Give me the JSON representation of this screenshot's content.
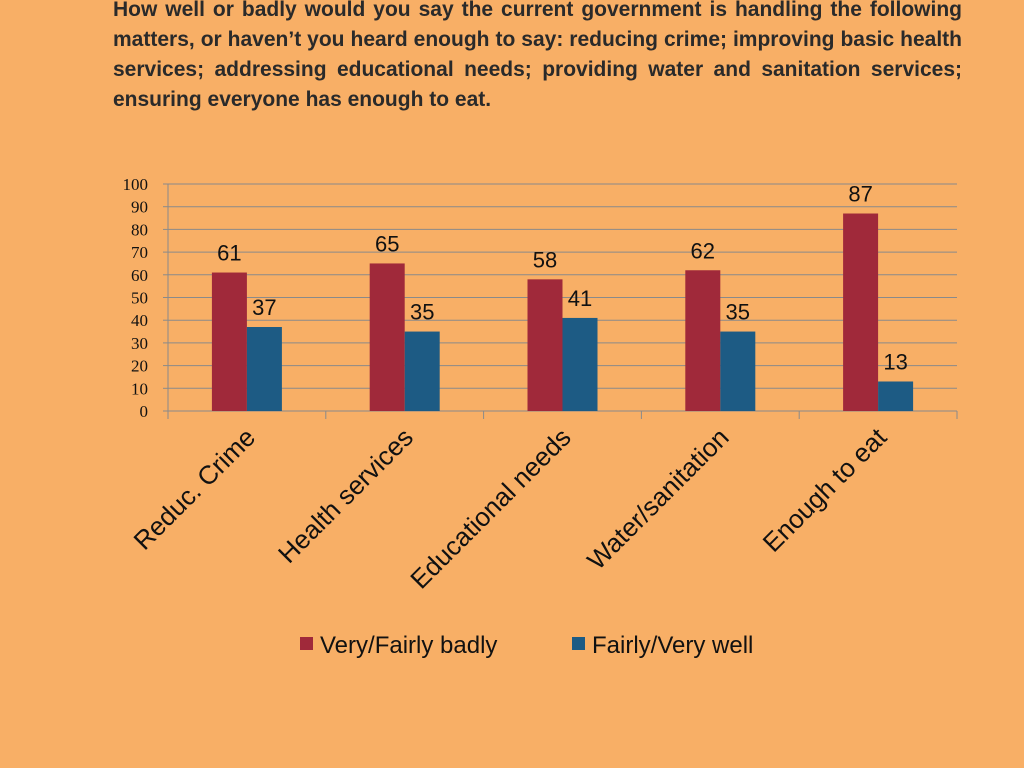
{
  "question": "How well or badly would you say the current government is handling the following matters, or haven’t you heard enough to say: reducing crime; improving basic health services; addressing educational needs; providing water and sanitation services; ensuring everyone has enough to eat.",
  "chart_data": {
    "type": "bar",
    "categories": [
      "Reduc. Crime",
      "Health services",
      "Educational needs",
      "Water/sanitation",
      "Enough to eat"
    ],
    "series": [
      {
        "name": "Very/Fairly badly",
        "color": "#A0293A",
        "values": [
          61,
          65,
          58,
          62,
          87
        ]
      },
      {
        "name": "Fairly/Very well",
        "color": "#1D5B84",
        "values": [
          37,
          35,
          41,
          35,
          13
        ]
      }
    ],
    "ylim": [
      0,
      100
    ],
    "yticks": [
      0,
      10,
      20,
      30,
      40,
      50,
      60,
      70,
      80,
      90,
      100
    ],
    "grid": true,
    "data_labels": true,
    "legend_position": "bottom",
    "gridline_color": "#8A8A8A"
  }
}
